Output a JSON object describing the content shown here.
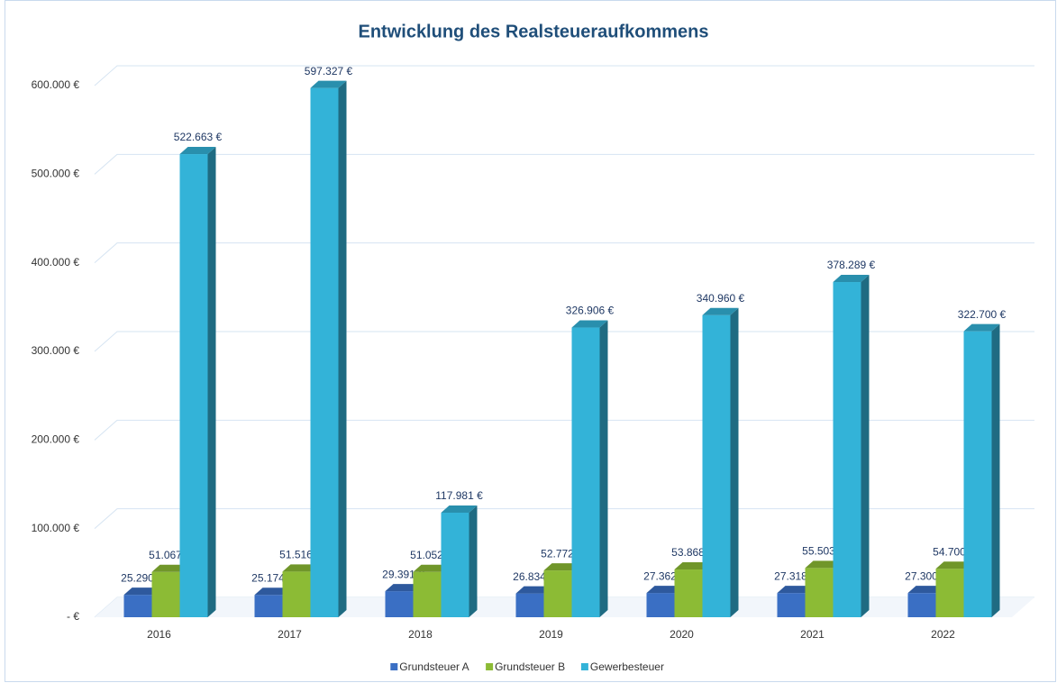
{
  "chart_data": {
    "type": "bar3d",
    "title": "Entwicklung des Realsteueraufkommens",
    "categories": [
      "2016",
      "2017",
      "2018",
      "2019",
      "2020",
      "2021",
      "2022"
    ],
    "series": [
      {
        "name": "Grundsteuer A",
        "color": "#3a6fc4",
        "values": [
          25290,
          25174,
          29391,
          26834,
          27362,
          27318,
          27300
        ],
        "value_labels": [
          "25.290 €",
          "25.174 €",
          "29.391 €",
          "26.834 €",
          "27.362 €",
          "27.318 €",
          "27.300 €"
        ]
      },
      {
        "name": "Grundsteuer B",
        "color": "#8cbb35",
        "values": [
          51067,
          51516,
          51052,
          52772,
          53868,
          55503,
          54700
        ],
        "value_labels": [
          "51.067 €",
          "51.516 €",
          "51.052 €",
          "52.772 €",
          "53.868 €",
          "55.503 €",
          "54.700 €"
        ]
      },
      {
        "name": "Gewerbesteuer",
        "color": "#33b3d8",
        "values": [
          522663,
          597327,
          117981,
          326906,
          340960,
          378289,
          322700
        ],
        "value_labels": [
          "522.663 €",
          "597.327 €",
          "117.981 €",
          "326.906 €",
          "340.960 €",
          "378.289 €",
          "322.700 €"
        ]
      }
    ],
    "ylim": [
      0,
      600000
    ],
    "yticks": [
      {
        "value": 0,
        "label": "-  €"
      },
      {
        "value": 100000,
        "label": "100.000 €"
      },
      {
        "value": 200000,
        "label": "200.000 €"
      },
      {
        "value": 300000,
        "label": "300.000 €"
      },
      {
        "value": 400000,
        "label": "400.000 €"
      },
      {
        "value": 500000,
        "label": "500.000 €"
      },
      {
        "value": 600000,
        "label": "600.000 €"
      }
    ],
    "grid": true,
    "legend": "bottom"
  }
}
